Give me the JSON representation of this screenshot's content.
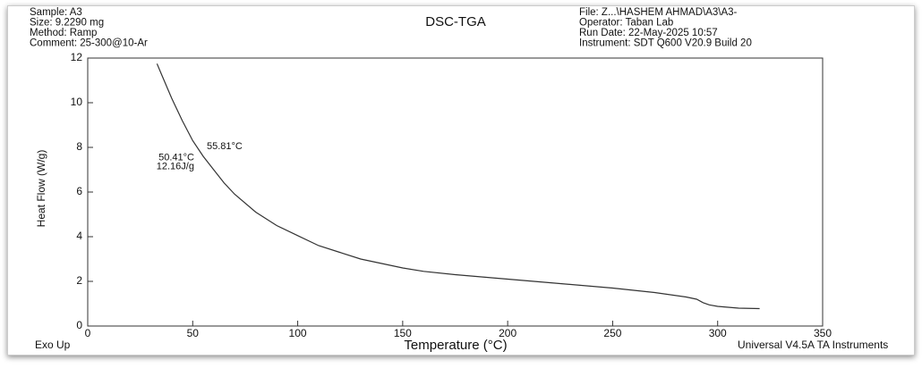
{
  "chart_data": {
    "type": "line",
    "title": "DSC-TGA",
    "info_left": [
      "Sample: A3",
      "Size:  9.2290 mg",
      "Method: Ramp",
      "Comment: 25-300@10-Ar"
    ],
    "info_right": [
      "File: Z...\\HASHEM AHMAD\\A3\\A3-",
      "Operator: Taban Lab",
      "Run Date: 22-May-2025 10:57",
      "Instrument: SDT Q600 V20.9 Build 20"
    ],
    "x_label": "Temperature (°C)",
    "y_label": "Heat Flow (W/g)",
    "footer_left": "Exo Up",
    "footer_right": "Universal V4.5A TA Instruments",
    "annotations": [
      "55.81°C",
      "50.41°C",
      "12.16J/g"
    ],
    "x": [
      33,
      35,
      40,
      45,
      50,
      55,
      60,
      65,
      70,
      80,
      90,
      100,
      110,
      120,
      130,
      140,
      150,
      160,
      175,
      200,
      225,
      250,
      270,
      285,
      290,
      293,
      296,
      300,
      310,
      320
    ],
    "series": [
      {
        "color": "#333333",
        "values": [
          11.75,
          11.3,
          10.2,
          9.2,
          8.3,
          7.6,
          7.0,
          6.4,
          5.9,
          5.1,
          4.5,
          4.05,
          3.6,
          3.3,
          3.0,
          2.8,
          2.6,
          2.45,
          2.3,
          2.1,
          1.9,
          1.7,
          1.5,
          1.3,
          1.2,
          1.05,
          0.95,
          0.88,
          0.8,
          0.78
        ]
      }
    ],
    "xlim": [
      0,
      350
    ],
    "ylim": [
      0,
      12
    ],
    "xticks": [
      0,
      50,
      100,
      150,
      200,
      250,
      300,
      350
    ],
    "yticks": [
      0,
      2,
      4,
      6,
      8,
      10,
      12
    ]
  }
}
